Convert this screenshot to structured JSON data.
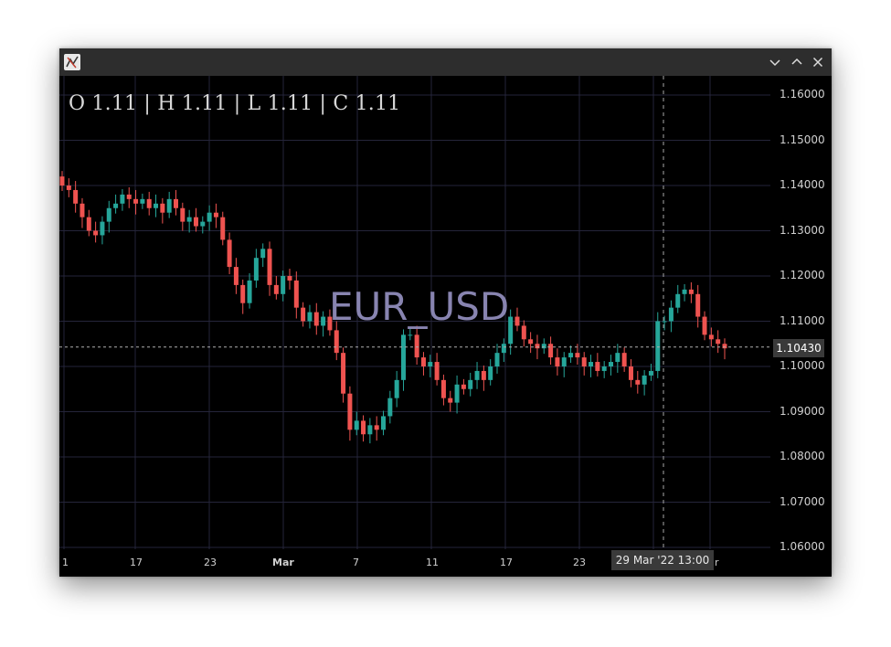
{
  "window": {
    "controls": [
      "minimize",
      "maximize",
      "close"
    ]
  },
  "ohlc_text": "O 1.11 | H 1.11 | L 1.11 | C 1.11",
  "watermark": "EUR_USD",
  "colors": {
    "background": "#000000",
    "up_candle": "#26a69a",
    "down_candle": "#ef5350",
    "grid": "#25253a",
    "watermark": "#8884b0"
  },
  "y_axis": {
    "ticks": [
      "1.16000",
      "1.15000",
      "1.14000",
      "1.13000",
      "1.12000",
      "1.11000",
      "1.10000",
      "1.09000",
      "1.08000",
      "1.07000",
      "1.06000"
    ],
    "current_price": "1.10430"
  },
  "x_axis": {
    "ticks": [
      "1",
      "17",
      "23",
      "Mar",
      "7",
      "11",
      "17",
      "23"
    ],
    "partial_tick": "r",
    "cursor_label": "29 Mar '22   13:00"
  },
  "chart_data": {
    "type": "candlestick",
    "symbol": "EUR_USD",
    "ylim": [
      1.06,
      1.165
    ],
    "grid": true,
    "price_line": 1.1043,
    "crosshair_x_label": "29 Mar '22 13:00",
    "closes_approx": [
      1.14,
      1.139,
      1.136,
      1.133,
      1.13,
      1.129,
      1.132,
      1.135,
      1.136,
      1.138,
      1.137,
      1.136,
      1.137,
      1.135,
      1.136,
      1.134,
      1.137,
      1.135,
      1.132,
      1.133,
      1.131,
      1.132,
      1.134,
      1.133,
      1.128,
      1.122,
      1.118,
      1.114,
      1.119,
      1.124,
      1.126,
      1.118,
      1.116,
      1.12,
      1.119,
      1.113,
      1.11,
      1.112,
      1.109,
      1.111,
      1.108,
      1.103,
      1.094,
      1.086,
      1.088,
      1.085,
      1.087,
      1.086,
      1.089,
      1.093,
      1.097,
      1.107,
      1.107,
      1.102,
      1.1,
      1.101,
      1.097,
      1.093,
      1.092,
      1.096,
      1.095,
      1.097,
      1.099,
      1.097,
      1.1,
      1.103,
      1.105,
      1.111,
      1.109,
      1.106,
      1.105,
      1.104,
      1.105,
      1.102,
      1.1,
      1.102,
      1.103,
      1.102,
      1.1,
      1.101,
      1.099,
      1.1,
      1.101,
      1.103,
      1.1,
      1.097,
      1.096,
      1.098,
      1.099,
      1.11,
      1.11,
      1.113,
      1.116,
      1.117,
      1.116,
      1.111,
      1.107,
      1.106,
      1.105,
      1.104
    ]
  }
}
